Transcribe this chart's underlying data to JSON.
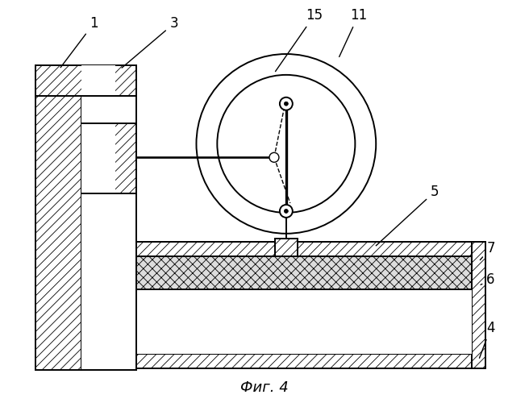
{
  "title": "Фиг. 4",
  "bg_color": "#ffffff",
  "line_color": "#000000",
  "figsize": [
    6.56,
    5.0
  ],
  "dpi": 100
}
